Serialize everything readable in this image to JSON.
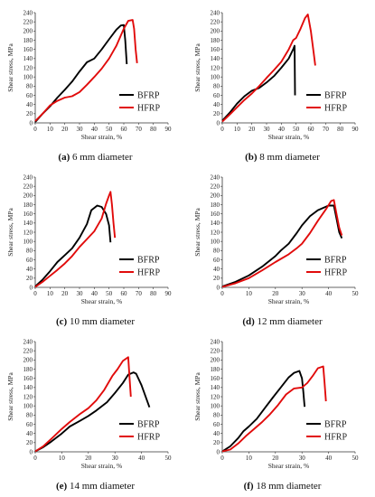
{
  "figure": {
    "series_colors": {
      "BFRP": "#000000",
      "HFRP": "#e10b0b"
    }
  },
  "chart_data": [
    {
      "type": "line",
      "panel_letter": "(a)",
      "caption": "6 mm diameter",
      "xlabel": "Shear strain, %",
      "ylabel": "Shear stress, MPa",
      "xlim": [
        0,
        90
      ],
      "ylim": [
        0,
        240
      ],
      "xticks": [
        0,
        10,
        20,
        30,
        40,
        50,
        60,
        70,
        80,
        90
      ],
      "yticks": [
        0,
        20,
        40,
        60,
        80,
        100,
        120,
        140,
        160,
        180,
        200,
        220,
        240
      ],
      "legend": [
        "BFRP",
        "HFRP"
      ],
      "series": [
        {
          "name": "BFRP",
          "color": "#000000",
          "points": [
            [
              0,
              2
            ],
            [
              5,
              20
            ],
            [
              10,
              36
            ],
            [
              15,
              55
            ],
            [
              20,
              72
            ],
            [
              25,
              90
            ],
            [
              30,
              112
            ],
            [
              35,
              132
            ],
            [
              40,
              140
            ],
            [
              45,
              160
            ],
            [
              50,
              182
            ],
            [
              55,
              203
            ],
            [
              58,
              212
            ],
            [
              60,
              213
            ],
            [
              61,
              180
            ],
            [
              62,
              128
            ]
          ]
        },
        {
          "name": "HFRP",
          "color": "#e10b0b",
          "points": [
            [
              0,
              4
            ],
            [
              5,
              20
            ],
            [
              10,
              38
            ],
            [
              15,
              48
            ],
            [
              20,
              55
            ],
            [
              25,
              58
            ],
            [
              30,
              67
            ],
            [
              35,
              83
            ],
            [
              40,
              100
            ],
            [
              45,
              118
            ],
            [
              50,
              140
            ],
            [
              55,
              168
            ],
            [
              60,
              205
            ],
            [
              63,
              222
            ],
            [
              66,
              224
            ],
            [
              67,
              205
            ],
            [
              68,
              160
            ],
            [
              69,
              130
            ]
          ]
        }
      ]
    },
    {
      "type": "line",
      "panel_letter": "(b)",
      "caption": "8 mm diameter",
      "xlabel": "Shear strain, %",
      "ylabel": "Shear stress, MPa",
      "xlim": [
        0,
        90
      ],
      "ylim": [
        0,
        240
      ],
      "xticks": [
        0,
        10,
        20,
        30,
        40,
        50,
        60,
        70,
        80,
        90
      ],
      "yticks": [
        0,
        20,
        40,
        60,
        80,
        100,
        120,
        140,
        160,
        180,
        200,
        220,
        240
      ],
      "legend": [
        "BFRP",
        "HFRP"
      ],
      "series": [
        {
          "name": "BFRP",
          "color": "#000000",
          "points": [
            [
              0,
              5
            ],
            [
              5,
              22
            ],
            [
              10,
              42
            ],
            [
              15,
              58
            ],
            [
              20,
              70
            ],
            [
              25,
              76
            ],
            [
              30,
              88
            ],
            [
              35,
              102
            ],
            [
              40,
              120
            ],
            [
              45,
              140
            ],
            [
              48,
              160
            ],
            [
              49,
              168
            ],
            [
              49.3,
              60
            ]
          ]
        },
        {
          "name": "HFRP",
          "color": "#e10b0b",
          "points": [
            [
              0,
              3
            ],
            [
              5,
              18
            ],
            [
              10,
              34
            ],
            [
              15,
              50
            ],
            [
              20,
              64
            ],
            [
              25,
              80
            ],
            [
              30,
              98
            ],
            [
              35,
              115
            ],
            [
              40,
              133
            ],
            [
              45,
              160
            ],
            [
              48,
              180
            ],
            [
              50,
              185
            ],
            [
              53,
              205
            ],
            [
              56,
              228
            ],
            [
              58,
              236
            ],
            [
              60,
              200
            ],
            [
              62,
              150
            ],
            [
              63,
              125
            ]
          ]
        }
      ]
    },
    {
      "type": "line",
      "panel_letter": "(c)",
      "caption": "10 mm diameter",
      "xlabel": "Shear strain, %",
      "ylabel": "Shear stress, MPa",
      "xlim": [
        0,
        90
      ],
      "ylim": [
        0,
        240
      ],
      "xticks": [
        0,
        10,
        20,
        30,
        40,
        50,
        60,
        70,
        80,
        90
      ],
      "yticks": [
        0,
        20,
        40,
        60,
        80,
        100,
        120,
        140,
        160,
        180,
        200,
        220,
        240
      ],
      "legend": [
        "BFRP",
        "HFRP"
      ],
      "series": [
        {
          "name": "BFRP",
          "color": "#000000",
          "points": [
            [
              0,
              2
            ],
            [
              5,
              17
            ],
            [
              10,
              35
            ],
            [
              15,
              55
            ],
            [
              20,
              70
            ],
            [
              25,
              85
            ],
            [
              30,
              108
            ],
            [
              35,
              138
            ],
            [
              38,
              168
            ],
            [
              42,
              178
            ],
            [
              45,
              175
            ],
            [
              48,
              160
            ],
            [
              50,
              135
            ],
            [
              51,
              98
            ]
          ]
        },
        {
          "name": "HFRP",
          "color": "#e10b0b",
          "points": [
            [
              0,
              1
            ],
            [
              5,
              12
            ],
            [
              10,
              25
            ],
            [
              15,
              38
            ],
            [
              20,
              52
            ],
            [
              25,
              68
            ],
            [
              30,
              88
            ],
            [
              35,
              105
            ],
            [
              40,
              122
            ],
            [
              45,
              150
            ],
            [
              48,
              182
            ],
            [
              50,
              200
            ],
            [
              51,
              208
            ],
            [
              52,
              180
            ],
            [
              53,
              140
            ],
            [
              54,
              108
            ]
          ]
        }
      ]
    },
    {
      "type": "line",
      "panel_letter": "(d)",
      "caption": "12 mm diameter",
      "xlabel": "Shear strain, %",
      "ylabel": "Shear stress, MPa",
      "xlim": [
        0,
        50
      ],
      "ylim": [
        0,
        240
      ],
      "xticks": [
        0,
        10,
        20,
        30,
        40,
        50
      ],
      "yticks": [
        0,
        20,
        40,
        60,
        80,
        100,
        120,
        140,
        160,
        180,
        200,
        220,
        240
      ],
      "legend": [
        "BFRP",
        "HFRP"
      ],
      "series": [
        {
          "name": "BFRP",
          "color": "#000000",
          "points": [
            [
              0,
              2
            ],
            [
              5,
              12
            ],
            [
              10,
              26
            ],
            [
              15,
              45
            ],
            [
              20,
              68
            ],
            [
              22,
              80
            ],
            [
              25,
              95
            ],
            [
              28,
              118
            ],
            [
              30,
              135
            ],
            [
              33,
              155
            ],
            [
              36,
              168
            ],
            [
              40,
              178
            ],
            [
              42,
              178
            ],
            [
              43,
              150
            ],
            [
              44,
              120
            ],
            [
              45,
              107
            ]
          ]
        },
        {
          "name": "HFRP",
          "color": "#e10b0b",
          "points": [
            [
              0,
              1
            ],
            [
              5,
              9
            ],
            [
              10,
              20
            ],
            [
              15,
              37
            ],
            [
              20,
              55
            ],
            [
              25,
              72
            ],
            [
              28,
              85
            ],
            [
              30,
              95
            ],
            [
              33,
              118
            ],
            [
              36,
              145
            ],
            [
              39,
              170
            ],
            [
              41,
              188
            ],
            [
              42,
              190
            ],
            [
              43,
              160
            ],
            [
              44,
              130
            ],
            [
              45,
              113
            ]
          ]
        }
      ]
    },
    {
      "type": "line",
      "panel_letter": "(e)",
      "caption": "14 mm diameter",
      "xlabel": "Shear strain, %",
      "ylabel": "Shear stress, MPa",
      "xlim": [
        0,
        50
      ],
      "ylim": [
        0,
        240
      ],
      "xticks": [
        0,
        10,
        20,
        30,
        40,
        50
      ],
      "yticks": [
        0,
        20,
        40,
        60,
        80,
        100,
        120,
        140,
        160,
        180,
        200,
        220,
        240
      ],
      "legend": [
        "BFRP",
        "HFRP"
      ],
      "series": [
        {
          "name": "BFRP",
          "color": "#000000",
          "points": [
            [
              0,
              1
            ],
            [
              3,
              10
            ],
            [
              6,
              22
            ],
            [
              10,
              40
            ],
            [
              13,
              55
            ],
            [
              17,
              68
            ],
            [
              20,
              78
            ],
            [
              23,
              90
            ],
            [
              27,
              108
            ],
            [
              30,
              128
            ],
            [
              33,
              150
            ],
            [
              35,
              168
            ],
            [
              37,
              173
            ],
            [
              38,
              170
            ],
            [
              40,
              145
            ],
            [
              43,
              97
            ]
          ]
        },
        {
          "name": "HFRP",
          "color": "#e10b0b",
          "points": [
            [
              0,
              1
            ],
            [
              3,
              12
            ],
            [
              6,
              28
            ],
            [
              10,
              50
            ],
            [
              13,
              65
            ],
            [
              17,
              83
            ],
            [
              20,
              95
            ],
            [
              23,
              112
            ],
            [
              26,
              135
            ],
            [
              29,
              165
            ],
            [
              31,
              180
            ],
            [
              33,
              198
            ],
            [
              35,
              206
            ],
            [
              35.5,
              160
            ],
            [
              36,
              120
            ]
          ]
        }
      ]
    },
    {
      "type": "line",
      "panel_letter": "(f)",
      "caption": "18 mm diameter",
      "xlabel": "Shear strain, %",
      "ylabel": "Shear stress, MPa",
      "xlim": [
        0,
        50
      ],
      "ylim": [
        0,
        240
      ],
      "xticks": [
        0,
        10,
        20,
        30,
        40,
        50
      ],
      "yticks": [
        0,
        20,
        40,
        60,
        80,
        100,
        120,
        140,
        160,
        180,
        200,
        220,
        240
      ],
      "legend": [
        "BFRP",
        "HFRP"
      ],
      "series": [
        {
          "name": "BFRP",
          "color": "#000000",
          "points": [
            [
              0,
              1
            ],
            [
              3,
              12
            ],
            [
              6,
              30
            ],
            [
              8,
              45
            ],
            [
              10,
              55
            ],
            [
              13,
              72
            ],
            [
              16,
              95
            ],
            [
              19,
              118
            ],
            [
              22,
              140
            ],
            [
              25,
              162
            ],
            [
              27,
              172
            ],
            [
              29,
              176
            ],
            [
              30,
              160
            ],
            [
              30.5,
              130
            ],
            [
              31,
              98
            ]
          ]
        },
        {
          "name": "HFRP",
          "color": "#e10b0b",
          "points": [
            [
              0,
              1
            ],
            [
              3,
              5
            ],
            [
              6,
              18
            ],
            [
              9,
              35
            ],
            [
              12,
              50
            ],
            [
              15,
              65
            ],
            [
              18,
              82
            ],
            [
              21,
              102
            ],
            [
              24,
              125
            ],
            [
              27,
              138
            ],
            [
              30,
              140
            ],
            [
              32,
              150
            ],
            [
              34,
              165
            ],
            [
              36,
              182
            ],
            [
              38,
              186
            ],
            [
              38.5,
              150
            ],
            [
              39,
              110
            ]
          ]
        }
      ]
    }
  ]
}
